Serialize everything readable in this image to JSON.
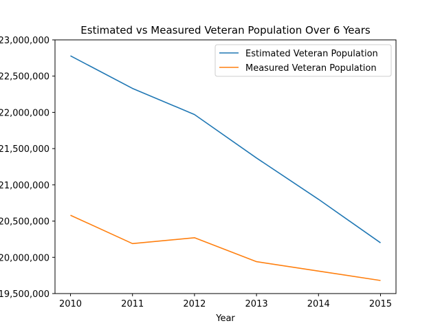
{
  "chart_data": {
    "type": "line",
    "title": "Estimated vs Measured Veteran Population Over 6 Years",
    "xlabel": "Year",
    "ylabel": "",
    "x": [
      2010,
      2011,
      2012,
      2013,
      2014,
      2015
    ],
    "ylim": [
      19500000,
      23000000
    ],
    "yticks": [
      "19,500,000",
      "20,000,000",
      "20,500,000",
      "21,000,000",
      "21,500,000",
      "22,000,000",
      "22,500,000",
      "23,000,000"
    ],
    "ytick_values": [
      19500000,
      20000000,
      20500000,
      21000000,
      21500000,
      22000000,
      22500000,
      23000000
    ],
    "xticks": [
      "2010",
      "2011",
      "2012",
      "2013",
      "2014",
      "2015"
    ],
    "grid": false,
    "legend": "top-right",
    "series": [
      {
        "name": "Estimated Veteran Population",
        "color": "#1f77b4",
        "values": [
          22780000,
          22330000,
          21970000,
          21370000,
          20800000,
          20200000
        ]
      },
      {
        "name": "Measured Veteran Population",
        "color": "#ff7f0e",
        "values": [
          20580000,
          20190000,
          20270000,
          19940000,
          19810000,
          19680000
        ]
      }
    ]
  }
}
